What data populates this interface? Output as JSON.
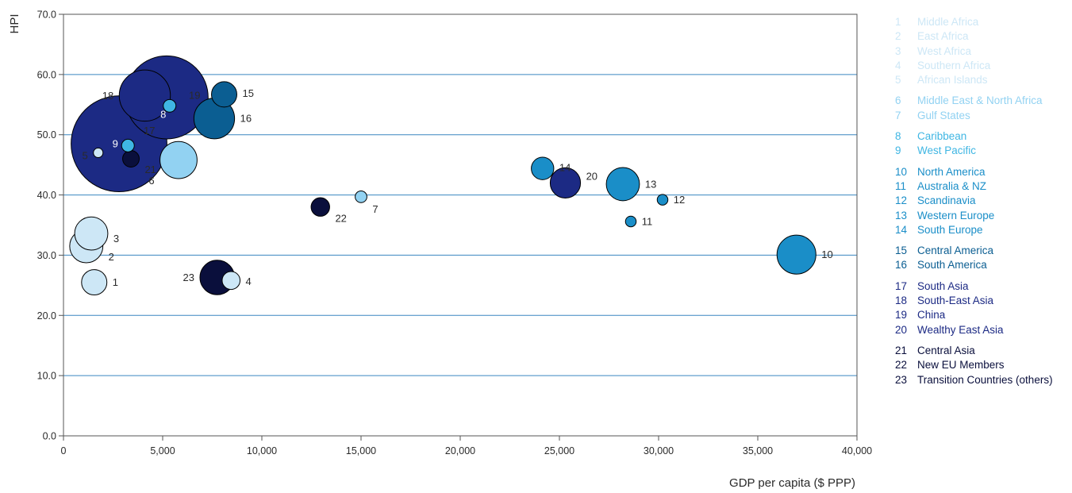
{
  "chart_data": {
    "type": "scatter",
    "title": "",
    "xlabel": "GDP per capita ($ PPP)",
    "ylabel": "HPI",
    "xlim": [
      0,
      40000
    ],
    "ylim": [
      0,
      70
    ],
    "x_ticks": [
      "0",
      "5,000",
      "10,000",
      "15,000",
      "20,000",
      "25,000",
      "30,000",
      "35,000",
      "40,000"
    ],
    "y_ticks": [
      "0.0",
      "10.0",
      "20.0",
      "30.0",
      "40.0",
      "50.0",
      "60.0",
      "70.0"
    ],
    "grid": "horizontal",
    "legend_position": "right",
    "colors": {
      "africa": "#cde7f6",
      "middle_east": "#92d2f2",
      "caribbean_pacific": "#3fb6e3",
      "europe_oecd": "#1a8ec8",
      "latin_america": "#0b5e92",
      "asia": "#1c2a84",
      "transition": "#0a0f3c",
      "grid": "#3a86c0",
      "axis": "#555555"
    },
    "points": [
      {
        "id": "1",
        "name": "Middle Africa",
        "x": 1550,
        "y": 25.5,
        "size": 1.4,
        "group": "africa"
      },
      {
        "id": "2",
        "name": "East Africa",
        "x": 1150,
        "y": 31.5,
        "size": 2.4,
        "group": "africa"
      },
      {
        "id": "3",
        "name": "West Africa",
        "x": 1400,
        "y": 33.6,
        "size": 2.4,
        "group": "africa"
      },
      {
        "id": "4",
        "name": "Southern Africa",
        "x": 8450,
        "y": 25.8,
        "size": 0.7,
        "group": "africa"
      },
      {
        "id": "5",
        "name": "African Islands",
        "x": 1750,
        "y": 47.0,
        "size": 0.2,
        "group": "africa"
      },
      {
        "id": "6",
        "name": "Middle East & North Africa",
        "x": 5800,
        "y": 45.8,
        "size": 3.0,
        "group": "middle_east"
      },
      {
        "id": "7",
        "name": "Gulf States",
        "x": 15000,
        "y": 39.7,
        "size": 0.3,
        "group": "middle_east"
      },
      {
        "id": "8",
        "name": "Caribbean",
        "x": 5350,
        "y": 54.8,
        "size": 0.35,
        "group": "caribbean_pacific"
      },
      {
        "id": "9",
        "name": "West Pacific",
        "x": 3250,
        "y": 48.2,
        "size": 0.35,
        "group": "caribbean_pacific"
      },
      {
        "id": "10",
        "name": "North America",
        "x": 36950,
        "y": 30.1,
        "size": 3.3,
        "group": "europe_oecd"
      },
      {
        "id": "11",
        "name": "Australia & NZ",
        "x": 28600,
        "y": 35.6,
        "size": 0.25,
        "group": "europe_oecd"
      },
      {
        "id": "12",
        "name": "Scandinavia",
        "x": 30200,
        "y": 39.2,
        "size": 0.25,
        "group": "europe_oecd"
      },
      {
        "id": "13",
        "name": "Western Europe",
        "x": 28200,
        "y": 41.8,
        "size": 2.4,
        "group": "europe_oecd"
      },
      {
        "id": "14",
        "name": "South Europe",
        "x": 24150,
        "y": 44.4,
        "size": 1.1,
        "group": "europe_oecd"
      },
      {
        "id": "15",
        "name": "Central America",
        "x": 8100,
        "y": 56.7,
        "size": 1.4,
        "group": "latin_america"
      },
      {
        "id": "16",
        "name": "South America",
        "x": 7600,
        "y": 52.7,
        "size": 3.6,
        "group": "latin_america"
      },
      {
        "id": "17",
        "name": "South Asia",
        "x": 2800,
        "y": 48.5,
        "size": 20.0,
        "group": "asia"
      },
      {
        "id": "18",
        "name": "South-East Asia",
        "x": 4100,
        "y": 56.5,
        "size": 5.7,
        "group": "asia"
      },
      {
        "id": "19",
        "name": "China",
        "x": 5200,
        "y": 56.2,
        "size": 15.0,
        "group": "asia"
      },
      {
        "id": "20",
        "name": "Wealthy East Asia",
        "x": 25300,
        "y": 42.0,
        "size": 2.0,
        "group": "asia"
      },
      {
        "id": "21",
        "name": "Central Asia",
        "x": 3400,
        "y": 46.0,
        "size": 0.6,
        "group": "transition"
      },
      {
        "id": "22",
        "name": "New EU Members",
        "x": 12950,
        "y": 38.0,
        "size": 0.75,
        "group": "transition"
      },
      {
        "id": "23",
        "name": "Transition Countries (others)",
        "x": 7750,
        "y": 26.3,
        "size": 2.6,
        "group": "transition"
      }
    ],
    "legend": [
      {
        "group": "africa",
        "items": [
          {
            "num": "1",
            "label": "Middle Africa"
          },
          {
            "num": "2",
            "label": "East Africa"
          },
          {
            "num": "3",
            "label": "West Africa"
          },
          {
            "num": "4",
            "label": "Southern Africa"
          },
          {
            "num": "5",
            "label": "African Islands"
          }
        ]
      },
      {
        "group": "middle_east",
        "items": [
          {
            "num": "6",
            "label": "Middle East & North Africa"
          },
          {
            "num": "7",
            "label": "Gulf States"
          }
        ]
      },
      {
        "group": "caribbean_pacific",
        "items": [
          {
            "num": "8",
            "label": "Caribbean"
          },
          {
            "num": "9",
            "label": "West Pacific"
          }
        ]
      },
      {
        "group": "europe_oecd",
        "items": [
          {
            "num": "10",
            "label": "North America"
          },
          {
            "num": "11",
            "label": "Australia & NZ"
          },
          {
            "num": "12",
            "label": "Scandinavia"
          },
          {
            "num": "13",
            "label": "Western Europe"
          },
          {
            "num": "14",
            "label": "South Europe"
          }
        ]
      },
      {
        "group": "latin_america",
        "items": [
          {
            "num": "15",
            "label": "Central America"
          },
          {
            "num": "16",
            "label": "South America"
          }
        ]
      },
      {
        "group": "asia",
        "items": [
          {
            "num": "17",
            "label": "South Asia"
          },
          {
            "num": "18",
            "label": "South-East Asia"
          },
          {
            "num": "19",
            "label": "China"
          },
          {
            "num": "20",
            "label": "Wealthy East Asia"
          }
        ]
      },
      {
        "group": "transition",
        "items": [
          {
            "num": "21",
            "label": "Central Asia"
          },
          {
            "num": "22",
            "label": "New EU Members"
          },
          {
            "num": "23",
            "label": "Transition Countries (others)"
          }
        ]
      }
    ]
  }
}
